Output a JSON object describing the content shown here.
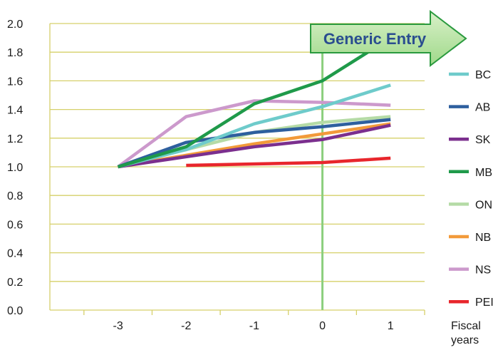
{
  "chart_data": {
    "type": "line",
    "x": [
      -3,
      -2,
      -1,
      0,
      1
    ],
    "xlim": [
      -4,
      1.5
    ],
    "ylim": [
      0,
      2.0
    ],
    "yticks": [
      "0.0",
      "0.2",
      "0.4",
      "0.6",
      "0.8",
      "1.0",
      "1.2",
      "1.4",
      "1.6",
      "1.8",
      "2.0"
    ],
    "xticks": [
      "-3",
      "-2",
      "-1",
      "0",
      "1"
    ],
    "xlabel": "Fiscal years",
    "grid": "horizontal",
    "legend_position": "right",
    "annotation": "Generic Entry",
    "marker_line_x": 0,
    "series": [
      {
        "name": "BC",
        "color": "#6ecbcb",
        "values": [
          1.0,
          1.12,
          1.3,
          1.42,
          1.57
        ]
      },
      {
        "name": "AB",
        "color": "#2e5f9e",
        "values": [
          1.0,
          1.17,
          1.24,
          1.28,
          1.33
        ]
      },
      {
        "name": "SK",
        "color": "#7b2f8e",
        "values": [
          1.0,
          1.07,
          1.14,
          1.19,
          1.29
        ]
      },
      {
        "name": "MB",
        "color": "#1f9a4a",
        "values": [
          1.0,
          1.14,
          1.44,
          1.6,
          1.9
        ]
      },
      {
        "name": "ON",
        "color": "#b5dba6",
        "values": [
          1.0,
          1.12,
          1.24,
          1.31,
          1.35
        ]
      },
      {
        "name": "NB",
        "color": "#f29a3a",
        "values": [
          1.0,
          1.08,
          1.16,
          1.23,
          1.3
        ]
      },
      {
        "name": "NS",
        "color": "#cc99cc",
        "values": [
          1.0,
          1.35,
          1.46,
          1.45,
          1.43
        ]
      },
      {
        "name": "PEI",
        "color": "#e8262c",
        "values": [
          null,
          1.01,
          1.02,
          1.03,
          1.06
        ]
      }
    ]
  }
}
